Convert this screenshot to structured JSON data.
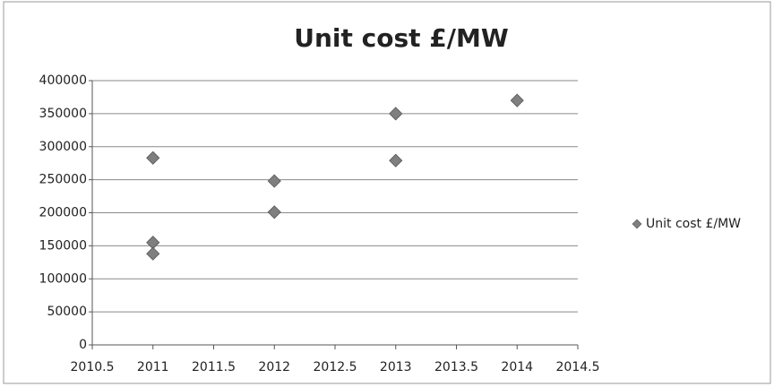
{
  "chart_data": {
    "type": "scatter",
    "title": "Unit cost £/MW",
    "series": [
      {
        "name": "Unit cost £/MW",
        "color": "#7f7f7f",
        "x": [
          2011,
          2011,
          2011,
          2012,
          2012,
          2013,
          2013,
          2014
        ],
        "values": [
          283000,
          155000,
          138000,
          248000,
          201000,
          350000,
          279000,
          370000
        ]
      }
    ],
    "xlim": [
      2010.5,
      2014.5
    ],
    "xticks": [
      2010.5,
      2011,
      2011.5,
      2012,
      2012.5,
      2013,
      2013.5,
      2014,
      2014.5
    ],
    "ylim": [
      0,
      400000
    ],
    "yticks": [
      0,
      50000,
      100000,
      150000,
      200000,
      250000,
      300000,
      350000,
      400000
    ],
    "grid": true,
    "legend": "right"
  }
}
